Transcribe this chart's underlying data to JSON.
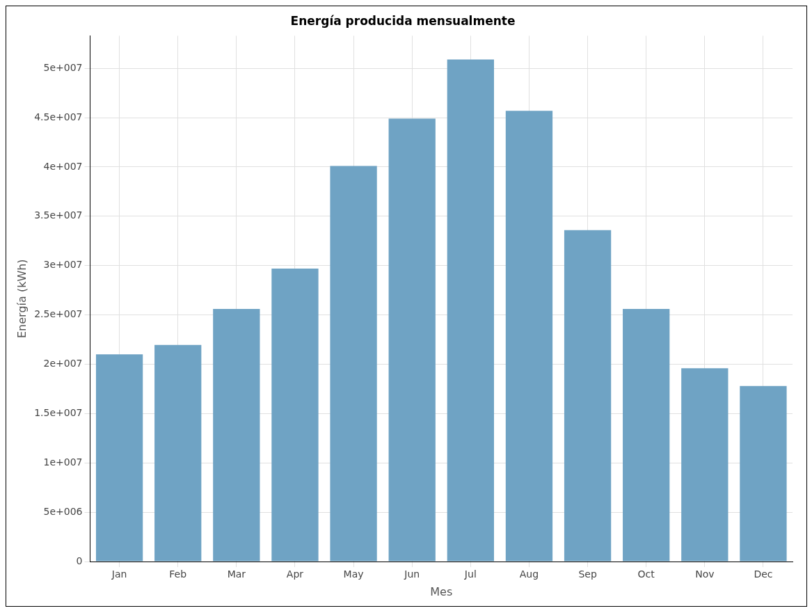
{
  "chart_data": {
    "type": "bar",
    "title": "Energía producida mensualmente",
    "xlabel": "Mes",
    "ylabel": "Energía (kWh)",
    "categories": [
      "Jan",
      "Feb",
      "Mar",
      "Apr",
      "May",
      "Jun",
      "Jul",
      "Aug",
      "Sep",
      "Oct",
      "Nov",
      "Dec"
    ],
    "values": [
      21000000,
      21950000,
      25600000,
      29700000,
      40100000,
      44900000,
      50900000,
      45700000,
      33600000,
      25600000,
      19600000,
      17800000
    ],
    "color": "#6fa3c4",
    "ylim": [
      0,
      53300000
    ],
    "yticks": [
      0,
      {
        "value": 5000000,
        "label": "5e+006"
      },
      {
        "value": 10000000,
        "label": "1e+007"
      },
      {
        "value": 15000000,
        "label": "1.5e+007"
      },
      {
        "value": 20000000,
        "label": "2e+007"
      },
      {
        "value": 25000000,
        "label": "2.5e+007"
      },
      {
        "value": 30000000,
        "label": "3e+007"
      },
      {
        "value": 35000000,
        "label": "3.5e+007"
      },
      {
        "value": 40000000,
        "label": "4e+007"
      },
      {
        "value": 45000000,
        "label": "4.5e+007"
      },
      {
        "value": 50000000,
        "label": "5e+007"
      }
    ],
    "grid": true
  }
}
